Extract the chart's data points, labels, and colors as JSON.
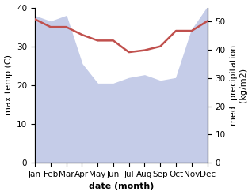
{
  "months": [
    "Jan",
    "Feb",
    "Mar",
    "Apr",
    "May",
    "Jun",
    "Jul",
    "Aug",
    "Sep",
    "Oct",
    "Nov",
    "Dec"
  ],
  "x": [
    0,
    1,
    2,
    3,
    4,
    5,
    6,
    7,
    8,
    9,
    10,
    11
  ],
  "temp": [
    37,
    35,
    35,
    33,
    31.5,
    31.5,
    28.5,
    29,
    30,
    34,
    34,
    36.5
  ],
  "precip": [
    52,
    50,
    52,
    35,
    28,
    28,
    30,
    31,
    29,
    30,
    47,
    55
  ],
  "temp_color": "#c0504d",
  "precip_fill_color": "#c5cce8",
  "bg_color": "#ffffff",
  "xlabel": "date (month)",
  "ylabel_left": "max temp (C)",
  "ylabel_right": "med. precipitation\n(kg/m2)",
  "ylim_left": [
    0,
    40
  ],
  "ylim_right": [
    0,
    55
  ],
  "yticks_left": [
    0,
    10,
    20,
    30,
    40
  ],
  "yticks_right": [
    0,
    10,
    20,
    30,
    40,
    50
  ],
  "label_fontsize": 8,
  "tick_fontsize": 7.5
}
